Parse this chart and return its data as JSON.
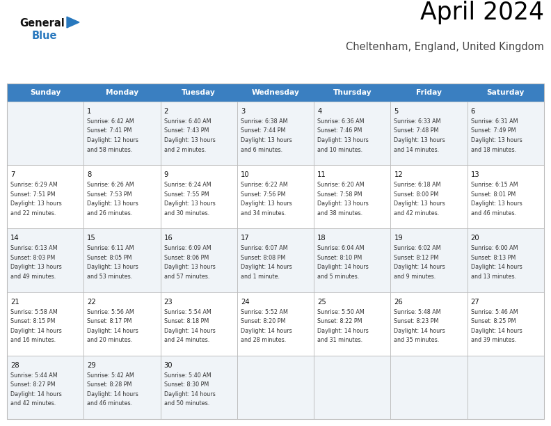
{
  "title": "April 2024",
  "subtitle": "Cheltenham, England, United Kingdom",
  "header_bg": "#3a7fc1",
  "header_text_color": "#FFFFFF",
  "weekdays": [
    "Sunday",
    "Monday",
    "Tuesday",
    "Wednesday",
    "Thursday",
    "Friday",
    "Saturday"
  ],
  "row_colors": [
    "#f0f4f8",
    "#FFFFFF"
  ],
  "grid_line_color": "#BBBBBB",
  "text_color": "#333333",
  "day_num_color": "#111111",
  "logo_general_color": "#111111",
  "logo_blue_color": "#2878be",
  "cal_data": [
    [
      {
        "day": "",
        "lines": []
      },
      {
        "day": "1",
        "lines": [
          "Sunrise: 6:42 AM",
          "Sunset: 7:41 PM",
          "Daylight: 12 hours",
          "and 58 minutes."
        ]
      },
      {
        "day": "2",
        "lines": [
          "Sunrise: 6:40 AM",
          "Sunset: 7:43 PM",
          "Daylight: 13 hours",
          "and 2 minutes."
        ]
      },
      {
        "day": "3",
        "lines": [
          "Sunrise: 6:38 AM",
          "Sunset: 7:44 PM",
          "Daylight: 13 hours",
          "and 6 minutes."
        ]
      },
      {
        "day": "4",
        "lines": [
          "Sunrise: 6:36 AM",
          "Sunset: 7:46 PM",
          "Daylight: 13 hours",
          "and 10 minutes."
        ]
      },
      {
        "day": "5",
        "lines": [
          "Sunrise: 6:33 AM",
          "Sunset: 7:48 PM",
          "Daylight: 13 hours",
          "and 14 minutes."
        ]
      },
      {
        "day": "6",
        "lines": [
          "Sunrise: 6:31 AM",
          "Sunset: 7:49 PM",
          "Daylight: 13 hours",
          "and 18 minutes."
        ]
      }
    ],
    [
      {
        "day": "7",
        "lines": [
          "Sunrise: 6:29 AM",
          "Sunset: 7:51 PM",
          "Daylight: 13 hours",
          "and 22 minutes."
        ]
      },
      {
        "day": "8",
        "lines": [
          "Sunrise: 6:26 AM",
          "Sunset: 7:53 PM",
          "Daylight: 13 hours",
          "and 26 minutes."
        ]
      },
      {
        "day": "9",
        "lines": [
          "Sunrise: 6:24 AM",
          "Sunset: 7:55 PM",
          "Daylight: 13 hours",
          "and 30 minutes."
        ]
      },
      {
        "day": "10",
        "lines": [
          "Sunrise: 6:22 AM",
          "Sunset: 7:56 PM",
          "Daylight: 13 hours",
          "and 34 minutes."
        ]
      },
      {
        "day": "11",
        "lines": [
          "Sunrise: 6:20 AM",
          "Sunset: 7:58 PM",
          "Daylight: 13 hours",
          "and 38 minutes."
        ]
      },
      {
        "day": "12",
        "lines": [
          "Sunrise: 6:18 AM",
          "Sunset: 8:00 PM",
          "Daylight: 13 hours",
          "and 42 minutes."
        ]
      },
      {
        "day": "13",
        "lines": [
          "Sunrise: 6:15 AM",
          "Sunset: 8:01 PM",
          "Daylight: 13 hours",
          "and 46 minutes."
        ]
      }
    ],
    [
      {
        "day": "14",
        "lines": [
          "Sunrise: 6:13 AM",
          "Sunset: 8:03 PM",
          "Daylight: 13 hours",
          "and 49 minutes."
        ]
      },
      {
        "day": "15",
        "lines": [
          "Sunrise: 6:11 AM",
          "Sunset: 8:05 PM",
          "Daylight: 13 hours",
          "and 53 minutes."
        ]
      },
      {
        "day": "16",
        "lines": [
          "Sunrise: 6:09 AM",
          "Sunset: 8:06 PM",
          "Daylight: 13 hours",
          "and 57 minutes."
        ]
      },
      {
        "day": "17",
        "lines": [
          "Sunrise: 6:07 AM",
          "Sunset: 8:08 PM",
          "Daylight: 14 hours",
          "and 1 minute."
        ]
      },
      {
        "day": "18",
        "lines": [
          "Sunrise: 6:04 AM",
          "Sunset: 8:10 PM",
          "Daylight: 14 hours",
          "and 5 minutes."
        ]
      },
      {
        "day": "19",
        "lines": [
          "Sunrise: 6:02 AM",
          "Sunset: 8:12 PM",
          "Daylight: 14 hours",
          "and 9 minutes."
        ]
      },
      {
        "day": "20",
        "lines": [
          "Sunrise: 6:00 AM",
          "Sunset: 8:13 PM",
          "Daylight: 14 hours",
          "and 13 minutes."
        ]
      }
    ],
    [
      {
        "day": "21",
        "lines": [
          "Sunrise: 5:58 AM",
          "Sunset: 8:15 PM",
          "Daylight: 14 hours",
          "and 16 minutes."
        ]
      },
      {
        "day": "22",
        "lines": [
          "Sunrise: 5:56 AM",
          "Sunset: 8:17 PM",
          "Daylight: 14 hours",
          "and 20 minutes."
        ]
      },
      {
        "day": "23",
        "lines": [
          "Sunrise: 5:54 AM",
          "Sunset: 8:18 PM",
          "Daylight: 14 hours",
          "and 24 minutes."
        ]
      },
      {
        "day": "24",
        "lines": [
          "Sunrise: 5:52 AM",
          "Sunset: 8:20 PM",
          "Daylight: 14 hours",
          "and 28 minutes."
        ]
      },
      {
        "day": "25",
        "lines": [
          "Sunrise: 5:50 AM",
          "Sunset: 8:22 PM",
          "Daylight: 14 hours",
          "and 31 minutes."
        ]
      },
      {
        "day": "26",
        "lines": [
          "Sunrise: 5:48 AM",
          "Sunset: 8:23 PM",
          "Daylight: 14 hours",
          "and 35 minutes."
        ]
      },
      {
        "day": "27",
        "lines": [
          "Sunrise: 5:46 AM",
          "Sunset: 8:25 PM",
          "Daylight: 14 hours",
          "and 39 minutes."
        ]
      }
    ],
    [
      {
        "day": "28",
        "lines": [
          "Sunrise: 5:44 AM",
          "Sunset: 8:27 PM",
          "Daylight: 14 hours",
          "and 42 minutes."
        ]
      },
      {
        "day": "29",
        "lines": [
          "Sunrise: 5:42 AM",
          "Sunset: 8:28 PM",
          "Daylight: 14 hours",
          "and 46 minutes."
        ]
      },
      {
        "day": "30",
        "lines": [
          "Sunrise: 5:40 AM",
          "Sunset: 8:30 PM",
          "Daylight: 14 hours",
          "and 50 minutes."
        ]
      },
      {
        "day": "",
        "lines": []
      },
      {
        "day": "",
        "lines": []
      },
      {
        "day": "",
        "lines": []
      },
      {
        "day": "",
        "lines": []
      }
    ]
  ]
}
